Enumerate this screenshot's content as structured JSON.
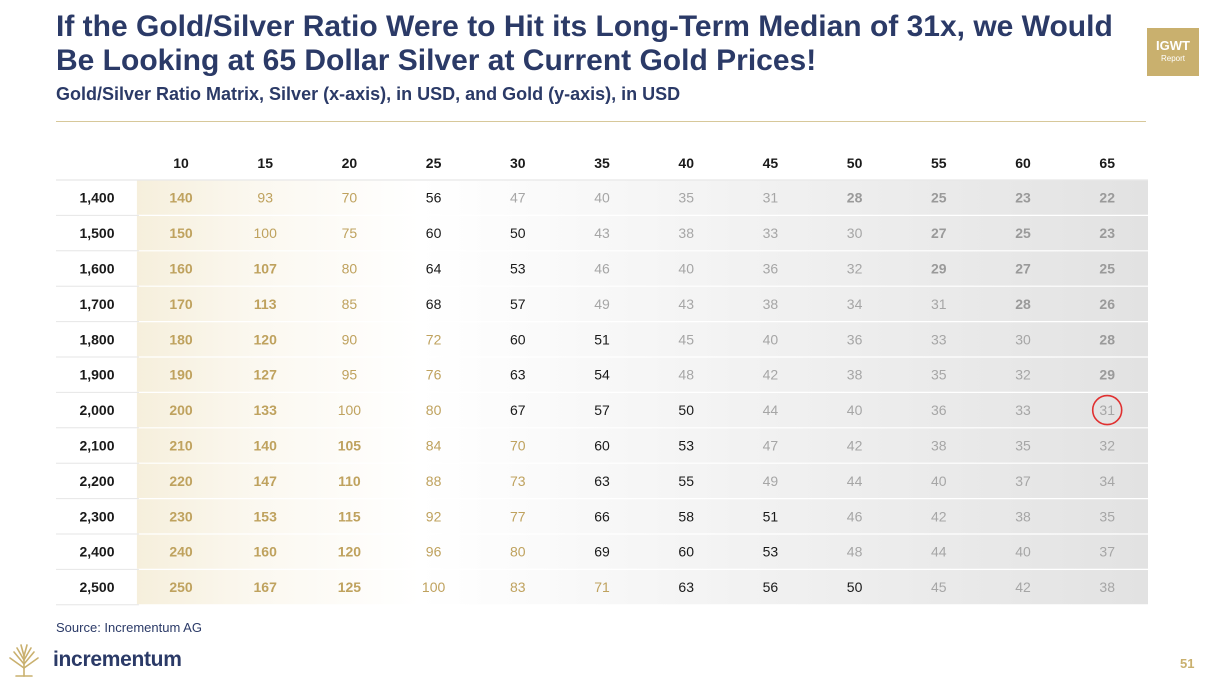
{
  "header": {
    "title": "If the Gold/Silver Ratio Were to Hit its Long-Term Median of 31x, we Would Be Looking at 65 Dollar Silver at Current Gold Prices!",
    "subtitle": "Gold/Silver Ratio Matrix, Silver (x-axis), in USD, and Gold (y-axis), in USD"
  },
  "badge": {
    "line1": "IGWT",
    "line2": "Report"
  },
  "footer": {
    "source": "Source: Incrementum AG",
    "brand": "incrementum",
    "page_number": "51"
  },
  "colors": {
    "navy": "#2b3a67",
    "gold": "#c9b06e",
    "highlight_circle": "#e03030",
    "text_black": "#1a1a1a",
    "text_gold": "#bfa25e",
    "text_grey": "#a6a6a6"
  },
  "chart_data": {
    "type": "table",
    "title": "Gold/Silver Ratio Matrix, Silver (x-axis), in USD, and Gold (y-axis), in USD",
    "columns": [
      "10",
      "15",
      "20",
      "25",
      "30",
      "35",
      "40",
      "45",
      "50",
      "55",
      "60",
      "65"
    ],
    "rows": [
      "1,400",
      "1,500",
      "1,600",
      "1,700",
      "1,800",
      "1,900",
      "2,000",
      "2,100",
      "2,200",
      "2,300",
      "2,400",
      "2,500"
    ],
    "values": [
      [
        "140",
        "93",
        "70",
        "56",
        "47",
        "40",
        "35",
        "31",
        "28",
        "25",
        "23",
        "22"
      ],
      [
        "150",
        "100",
        "75",
        "60",
        "50",
        "43",
        "38",
        "33",
        "30",
        "27",
        "25",
        "23"
      ],
      [
        "160",
        "107",
        "80",
        "64",
        "53",
        "46",
        "40",
        "36",
        "32",
        "29",
        "27",
        "25"
      ],
      [
        "170",
        "113",
        "85",
        "68",
        "57",
        "49",
        "43",
        "38",
        "34",
        "31",
        "28",
        "26"
      ],
      [
        "180",
        "120",
        "90",
        "72",
        "60",
        "51",
        "45",
        "40",
        "36",
        "33",
        "30",
        "28"
      ],
      [
        "190",
        "127",
        "95",
        "76",
        "63",
        "54",
        "48",
        "42",
        "38",
        "35",
        "32",
        "29"
      ],
      [
        "200",
        "133",
        "100",
        "80",
        "67",
        "57",
        "50",
        "44",
        "40",
        "36",
        "33",
        "31"
      ],
      [
        "210",
        "140",
        "105",
        "84",
        "70",
        "60",
        "53",
        "47",
        "42",
        "38",
        "35",
        "32"
      ],
      [
        "220",
        "147",
        "110",
        "88",
        "73",
        "63",
        "55",
        "49",
        "44",
        "40",
        "37",
        "34"
      ],
      [
        "230",
        "153",
        "115",
        "92",
        "77",
        "66",
        "58",
        "51",
        "46",
        "42",
        "38",
        "35"
      ],
      [
        "240",
        "160",
        "120",
        "96",
        "80",
        "69",
        "60",
        "53",
        "48",
        "44",
        "40",
        "37"
      ],
      [
        "250",
        "167",
        "125",
        "100",
        "83",
        "71",
        "63",
        "56",
        "50",
        "45",
        "42",
        "38"
      ]
    ],
    "styles": [
      [
        "gb",
        "g",
        "g",
        "k",
        "r",
        "r",
        "r",
        "r",
        "rb",
        "rb",
        "rb",
        "rb"
      ],
      [
        "gb",
        "g",
        "g",
        "k",
        "k",
        "r",
        "r",
        "r",
        "r",
        "rb",
        "rb",
        "rb"
      ],
      [
        "gb",
        "gb",
        "g",
        "k",
        "k",
        "r",
        "r",
        "r",
        "r",
        "rb",
        "rb",
        "rb"
      ],
      [
        "gb",
        "gb",
        "g",
        "k",
        "k",
        "r",
        "r",
        "r",
        "r",
        "r",
        "rb",
        "rb"
      ],
      [
        "gb",
        "gb",
        "g",
        "g",
        "k",
        "k",
        "r",
        "r",
        "r",
        "r",
        "r",
        "rb"
      ],
      [
        "gb",
        "gb",
        "g",
        "g",
        "k",
        "k",
        "r",
        "r",
        "r",
        "r",
        "r",
        "rb"
      ],
      [
        "gb",
        "gb",
        "g",
        "g",
        "k",
        "k",
        "k",
        "r",
        "r",
        "r",
        "r",
        "r"
      ],
      [
        "gb",
        "gb",
        "gb",
        "g",
        "g",
        "k",
        "k",
        "r",
        "r",
        "r",
        "r",
        "r"
      ],
      [
        "gb",
        "gb",
        "gb",
        "g",
        "g",
        "k",
        "k",
        "r",
        "r",
        "r",
        "r",
        "r"
      ],
      [
        "gb",
        "gb",
        "gb",
        "g",
        "g",
        "k",
        "k",
        "k",
        "r",
        "r",
        "r",
        "r"
      ],
      [
        "gb",
        "gb",
        "gb",
        "g",
        "g",
        "k",
        "k",
        "k",
        "r",
        "r",
        "r",
        "r"
      ],
      [
        "gb",
        "gb",
        "gb",
        "g",
        "g",
        "g",
        "k",
        "k",
        "k",
        "r",
        "r",
        "r"
      ]
    ],
    "highlight": {
      "row": "2,000",
      "column": "65",
      "value": "31"
    }
  }
}
